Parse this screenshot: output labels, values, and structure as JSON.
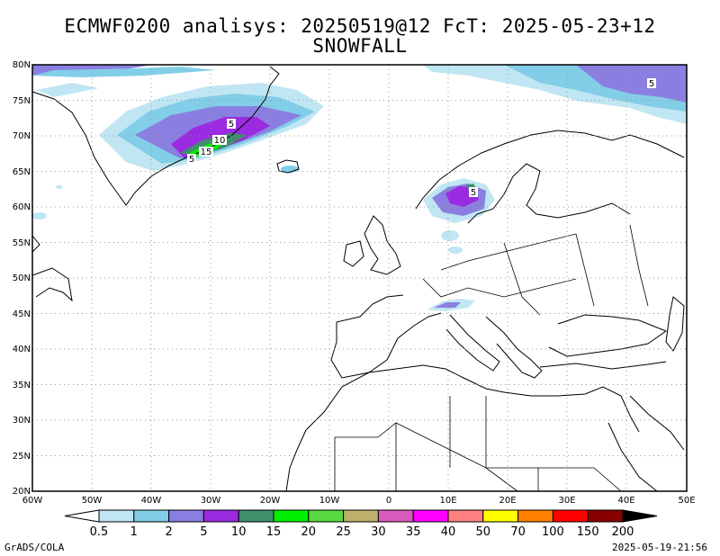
{
  "title_line1": "ECMWF0200 analisys: 20250519@12 FcT: 2025-05-23+12",
  "title_line2": "SNOWFALL",
  "lat_labels": [
    "80N",
    "75N",
    "70N",
    "65N",
    "60N",
    "55N",
    "50N",
    "45N",
    "40N",
    "35N",
    "30N",
    "25N",
    "20N"
  ],
  "lon_labels": [
    "60W",
    "50W",
    "40W",
    "30W",
    "20W",
    "10W",
    "0",
    "10E",
    "20E",
    "30E",
    "40E",
    "50E"
  ],
  "contour_labels": [
    "5",
    "5",
    "10",
    "15",
    "5",
    "5"
  ],
  "colorbar": {
    "levels": [
      "0.5",
      "1",
      "2",
      "5",
      "10",
      "15",
      "20",
      "25",
      "30",
      "35",
      "40",
      "50",
      "70",
      "100",
      "150",
      "200"
    ],
    "colors": [
      "#ffffff",
      "#bfe6f2",
      "#82cde8",
      "#8a7fe0",
      "#9a2be0",
      "#3f8f6a",
      "#00f000",
      "#55d840",
      "#bdb06a",
      "#d85cbc",
      "#ff00ff",
      "#ff8080",
      "#ffff00",
      "#ff8000",
      "#ff0000",
      "#880000",
      "#000000"
    ]
  },
  "footer_left": "GrADS/COLA",
  "footer_right": "2025-05-19-21:56"
}
